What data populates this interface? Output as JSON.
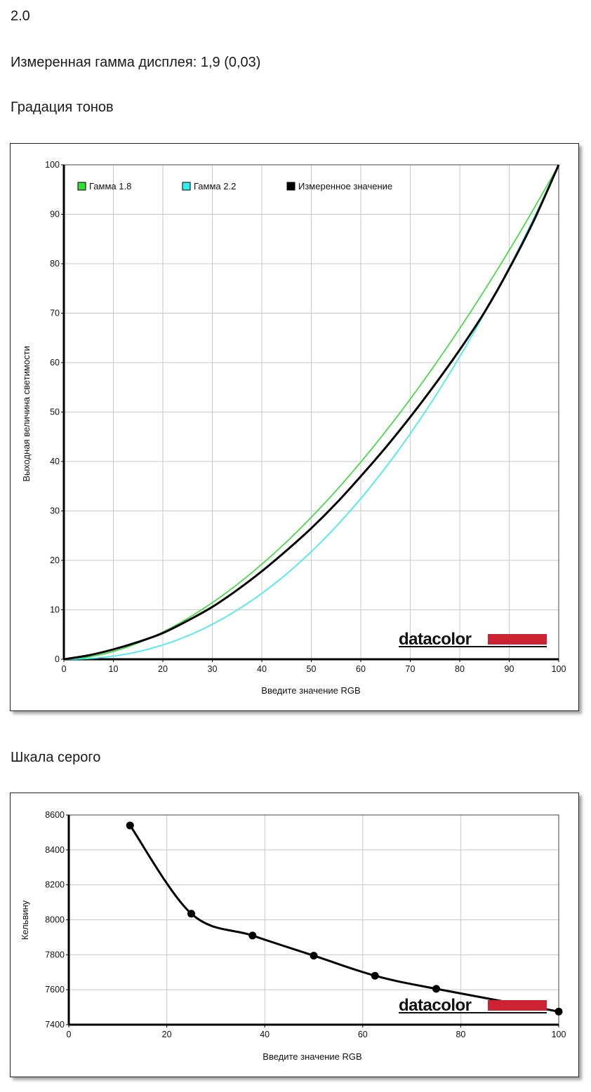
{
  "header": {
    "version": "2.0",
    "measured_gamma": "Измеренная гамма дисплея: 1,9 (0,03)",
    "section_tone": "Градация тонов",
    "section_gray": "Шкала серого"
  },
  "logo_text": "datacolor",
  "colors": {
    "gamma18": "#33dd33",
    "gamma22": "#33eeee",
    "measured": "#000000",
    "grid": "#c8c8c8",
    "logo_red": "#cc2233"
  },
  "chart_data": [
    {
      "type": "line",
      "title": "Градация тонов",
      "xlabel": "Введите значение RGB",
      "ylabel": "Выходная величина светимости",
      "xlim": [
        0,
        100
      ],
      "ylim": [
        0,
        100
      ],
      "xticks": [
        0,
        10,
        20,
        30,
        40,
        50,
        60,
        70,
        80,
        90,
        100
      ],
      "yticks": [
        0,
        10,
        20,
        30,
        40,
        50,
        60,
        70,
        80,
        90,
        100
      ],
      "grid": true,
      "legend": "top-left",
      "series": [
        {
          "name": "Гамма 1.8",
          "color": "#33dd33",
          "gamma": 1.8,
          "x": [
            0,
            10,
            20,
            30,
            40,
            50,
            60,
            70,
            80,
            90,
            100
          ],
          "y": [
            0,
            1.6,
            5.5,
            11.5,
            19.2,
            28.7,
            39.9,
            52.6,
            66.9,
            82.7,
            100
          ]
        },
        {
          "name": "Гамма 2.2",
          "color": "#33eeee",
          "gamma": 2.2,
          "x": [
            0,
            10,
            20,
            30,
            40,
            50,
            60,
            70,
            80,
            90,
            100
          ],
          "y": [
            0,
            0.6,
            2.9,
            7.1,
            13.3,
            21.8,
            32.5,
            45.6,
            61.2,
            79.3,
            100
          ]
        },
        {
          "name": "Измеренное значение",
          "color": "#000000",
          "x": [
            0,
            5,
            10,
            15,
            20,
            25,
            30,
            35,
            40,
            45,
            50,
            55,
            60,
            65,
            70,
            75,
            80,
            85,
            90,
            95,
            100
          ],
          "y": [
            0,
            0.8,
            2,
            3.5,
            5.3,
            7.8,
            10.6,
            14,
            17.8,
            22,
            26.5,
            31.5,
            37,
            42.8,
            49,
            55.6,
            62.6,
            70.2,
            79,
            88.8,
            100
          ]
        }
      ]
    },
    {
      "type": "line",
      "title": "Шкала серого",
      "xlabel": "Введите значение RGB",
      "ylabel": "Кельвину",
      "xlim": [
        0,
        100
      ],
      "ylim": [
        7400,
        8600
      ],
      "xticks": [
        0,
        20,
        40,
        60,
        80,
        100
      ],
      "yticks": [
        7400,
        7600,
        7800,
        8000,
        8200,
        8400,
        8600
      ],
      "grid": true,
      "series": [
        {
          "name": "",
          "color": "#000000",
          "x": [
            12.5,
            25,
            37.5,
            50,
            62.5,
            75,
            100
          ],
          "y": [
            8540,
            8035,
            7910,
            7795,
            7680,
            7605,
            7475
          ]
        }
      ]
    }
  ]
}
